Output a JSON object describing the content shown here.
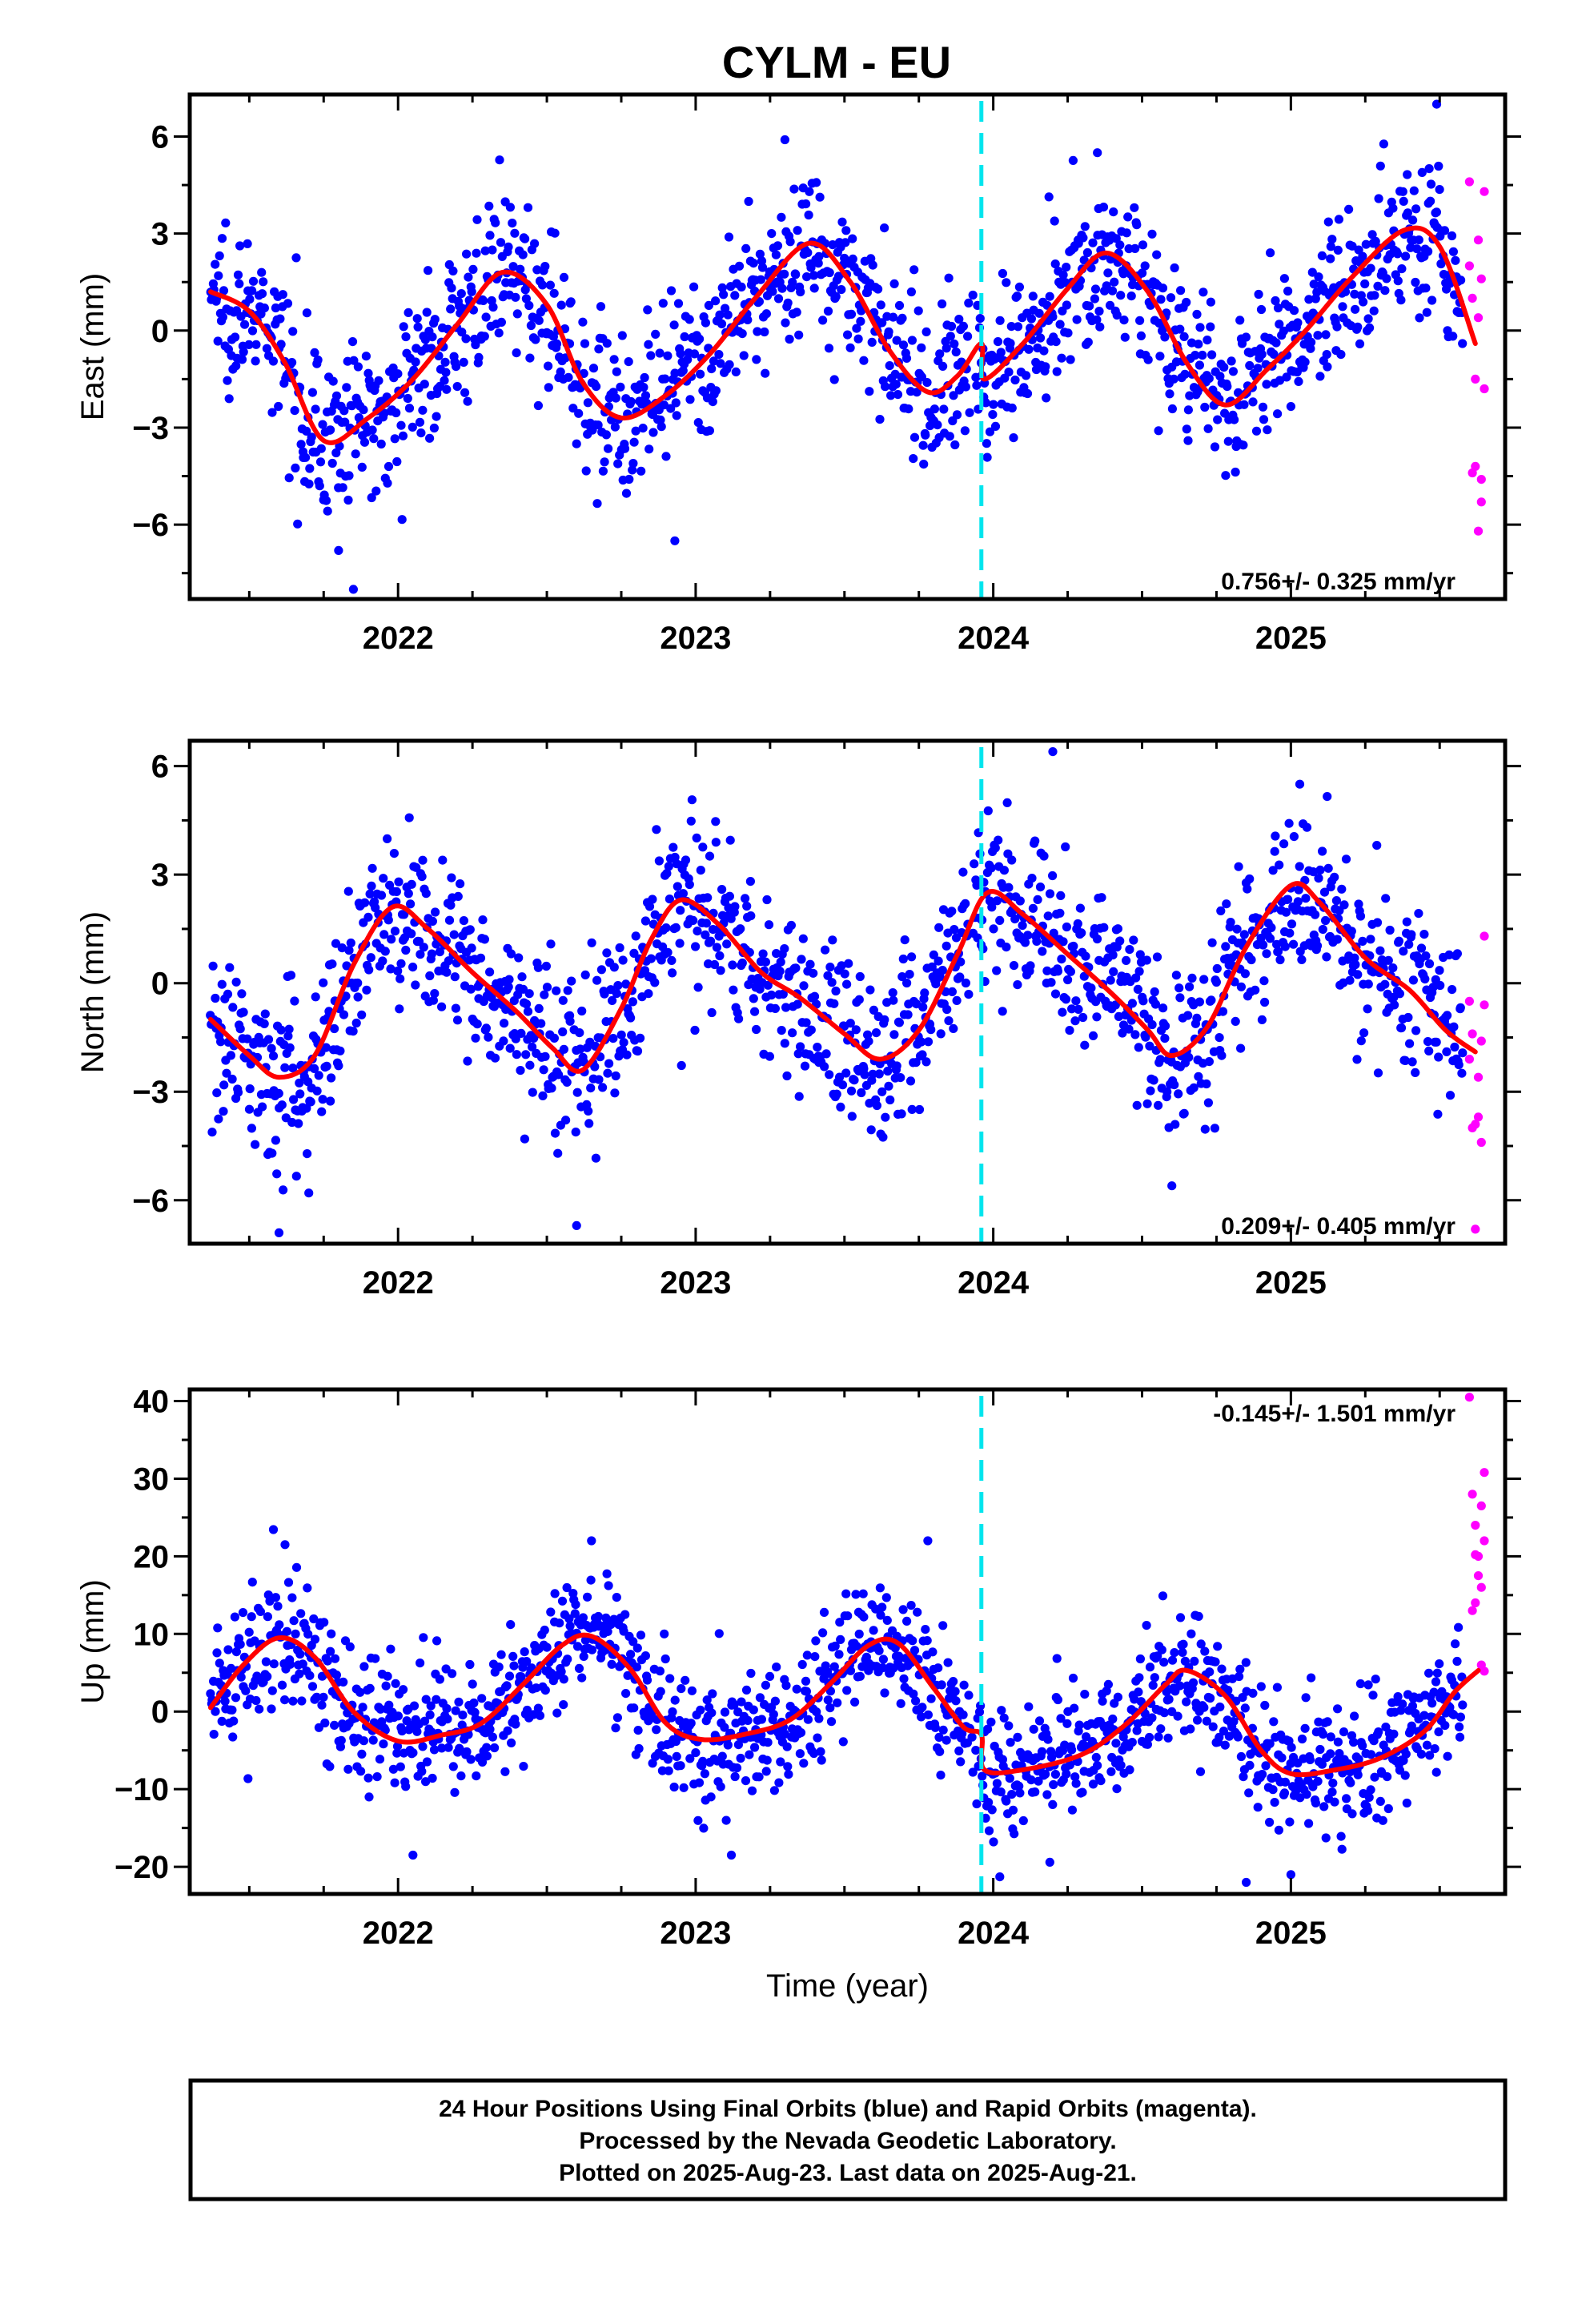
{
  "title": "CYLM - EU",
  "chart_data": [
    {
      "type": "scatter",
      "id": "east",
      "ylabel": "East (mm)",
      "xlabel": "",
      "xlim": [
        2021.3,
        2025.72
      ],
      "ylim": [
        -8.3,
        7.3
      ],
      "xticks": [
        2022,
        2023,
        2024,
        2025
      ],
      "yticks": [
        -6,
        -3,
        0,
        3,
        6
      ],
      "y_tick_labels": [
        "−6",
        "−3",
        "0",
        "3",
        "6"
      ],
      "rate": "0.756+/- 0.325 mm/yr",
      "rate_position": "bottom-right",
      "break_epoch": 2023.96,
      "seasonal": {
        "amplitude": 2.75,
        "phase_year": 0.38,
        "trend": 0.756,
        "t0": 2023.5,
        "offset_at_break": 0.0
      },
      "fit_points": [
        [
          2021.37,
          1.2
        ],
        [
          2021.5,
          0.6
        ],
        [
          2021.62,
          -1.0
        ],
        [
          2021.75,
          -3.4
        ],
        [
          2021.9,
          -2.7
        ],
        [
          2022.05,
          -1.5
        ],
        [
          2022.2,
          0.2
        ],
        [
          2022.35,
          1.8
        ],
        [
          2022.5,
          0.8
        ],
        [
          2022.62,
          -1.6
        ],
        [
          2022.75,
          -2.7
        ],
        [
          2022.9,
          -2.0
        ],
        [
          2023.05,
          -0.7
        ],
        [
          2023.2,
          1.0
        ],
        [
          2023.38,
          2.7
        ],
        [
          2023.52,
          1.5
        ],
        [
          2023.65,
          -0.6
        ],
        [
          2023.78,
          -1.9
        ],
        [
          2023.88,
          -1.4
        ],
        [
          2023.96,
          -0.4
        ],
        [
          2023.97,
          -1.5
        ],
        [
          2024.1,
          -0.4
        ],
        [
          2024.25,
          1.3
        ],
        [
          2024.38,
          2.4
        ],
        [
          2024.52,
          1.2
        ],
        [
          2024.65,
          -1.0
        ],
        [
          2024.78,
          -2.3
        ],
        [
          2024.92,
          -1.2
        ],
        [
          2025.05,
          0.0
        ],
        [
          2025.2,
          1.6
        ],
        [
          2025.38,
          3.1
        ],
        [
          2025.5,
          2.6
        ],
        [
          2025.62,
          -0.4
        ]
      ],
      "rapid_points": [
        [
          2025.6,
          4.6
        ],
        [
          2025.61,
          1.0
        ],
        [
          2025.62,
          -1.5
        ],
        [
          2025.62,
          -4.2
        ],
        [
          2025.63,
          -6.2
        ],
        [
          2025.63,
          2.8
        ],
        [
          2025.64,
          -4.6
        ],
        [
          2025.64,
          1.6
        ],
        [
          2025.65,
          4.3
        ],
        [
          2025.65,
          -1.8
        ],
        [
          2025.61,
          -4.4
        ],
        [
          2025.63,
          0.4
        ],
        [
          2025.64,
          -5.3
        ],
        [
          2025.6,
          2.0
        ]
      ],
      "noise_sigma": 1.2,
      "outliers": [
        [
          2021.85,
          -8.0
        ],
        [
          2021.8,
          -6.8
        ],
        [
          2023.3,
          5.9
        ],
        [
          2025.49,
          7.0
        ],
        [
          2024.35,
          5.5
        ],
        [
          2022.93,
          -6.5
        ]
      ],
      "colors": {
        "final": "#0000ff",
        "rapid": "#ff00ff",
        "fit": "#ff0000",
        "break": "#00e5ee"
      }
    },
    {
      "type": "scatter",
      "id": "north",
      "ylabel": "North (mm)",
      "xlabel": "",
      "xlim": [
        2021.3,
        2025.72
      ],
      "ylim": [
        -7.2,
        6.7
      ],
      "xticks": [
        2022,
        2023,
        2024,
        2025
      ],
      "yticks": [
        -6,
        -3,
        0,
        3,
        6
      ],
      "y_tick_labels": [
        "−6",
        "−3",
        "0",
        "3",
        "6"
      ],
      "rate": "0.209+/- 0.405 mm/yr",
      "rate_position": "bottom-right",
      "break_epoch": 2023.96,
      "fit_points": [
        [
          2021.37,
          -1.0
        ],
        [
          2021.5,
          -2.0
        ],
        [
          2021.6,
          -2.6
        ],
        [
          2021.72,
          -2.0
        ],
        [
          2021.85,
          0.5
        ],
        [
          2021.98,
          2.1
        ],
        [
          2022.1,
          1.5
        ],
        [
          2022.25,
          0.3
        ],
        [
          2022.4,
          -0.8
        ],
        [
          2022.52,
          -1.8
        ],
        [
          2022.62,
          -2.4
        ],
        [
          2022.75,
          -0.7
        ],
        [
          2022.85,
          1.2
        ],
        [
          2022.95,
          2.3
        ],
        [
          2023.08,
          1.6
        ],
        [
          2023.22,
          0.3
        ],
        [
          2023.35,
          -0.4
        ],
        [
          2023.5,
          -1.4
        ],
        [
          2023.62,
          -2.1
        ],
        [
          2023.75,
          -1.3
        ],
        [
          2023.88,
          0.8
        ],
        [
          2023.98,
          2.5
        ],
        [
          2024.1,
          1.9
        ],
        [
          2024.25,
          0.8
        ],
        [
          2024.4,
          -0.3
        ],
        [
          2024.52,
          -1.3
        ],
        [
          2024.6,
          -2.0
        ],
        [
          2024.72,
          -1.2
        ],
        [
          2024.85,
          1.0
        ],
        [
          2025.0,
          2.7
        ],
        [
          2025.1,
          2.2
        ],
        [
          2025.25,
          0.7
        ],
        [
          2025.4,
          -0.2
        ],
        [
          2025.52,
          -1.3
        ],
        [
          2025.62,
          -1.9
        ]
      ],
      "rapid_points": [
        [
          2025.6,
          -0.5
        ],
        [
          2025.61,
          -1.4
        ],
        [
          2025.62,
          -3.9
        ],
        [
          2025.63,
          -2.6
        ],
        [
          2025.64,
          -4.4
        ],
        [
          2025.65,
          -0.6
        ],
        [
          2025.65,
          1.3
        ],
        [
          2025.62,
          -6.8
        ],
        [
          2025.63,
          -3.7
        ],
        [
          2025.64,
          -1.6
        ],
        [
          2025.61,
          -4.0
        ],
        [
          2025.6,
          -2.1
        ]
      ],
      "noise_sigma": 1.15,
      "outliers": [
        [
          2021.6,
          -6.9
        ],
        [
          2022.6,
          -6.7
        ],
        [
          2024.2,
          6.4
        ],
        [
          2024.6,
          -5.6
        ],
        [
          2021.7,
          -5.8
        ],
        [
          2025.03,
          5.5
        ]
      ],
      "colors": {
        "final": "#0000ff",
        "rapid": "#ff00ff",
        "fit": "#ff0000",
        "break": "#00e5ee"
      }
    },
    {
      "type": "scatter",
      "id": "up",
      "ylabel": "Up (mm)",
      "xlabel": "Time (year)",
      "xlim": [
        2021.3,
        2025.72
      ],
      "ylim": [
        -23.5,
        41.5
      ],
      "xticks": [
        2022,
        2023,
        2024,
        2025
      ],
      "yticks": [
        -20,
        -10,
        0,
        10,
        20,
        30,
        40
      ],
      "y_tick_labels": [
        "−20",
        "−10",
        "0",
        "10",
        "20",
        "30",
        "40"
      ],
      "rate": "-0.145+/- 1.501 mm/yr",
      "rate_position": "top-right",
      "break_epoch": 2023.96,
      "fit_points": [
        [
          2021.37,
          0.5
        ],
        [
          2021.48,
          6.0
        ],
        [
          2021.6,
          9.5
        ],
        [
          2021.72,
          7.0
        ],
        [
          2021.85,
          0.0
        ],
        [
          2022.0,
          -3.8
        ],
        [
          2022.15,
          -3.0
        ],
        [
          2022.28,
          -1.5
        ],
        [
          2022.42,
          3.5
        ],
        [
          2022.55,
          8.5
        ],
        [
          2022.65,
          9.7
        ],
        [
          2022.78,
          5.5
        ],
        [
          2022.9,
          -1.5
        ],
        [
          2023.02,
          -3.6
        ],
        [
          2023.18,
          -2.8
        ],
        [
          2023.32,
          -1.0
        ],
        [
          2023.45,
          3.5
        ],
        [
          2023.58,
          8.5
        ],
        [
          2023.68,
          8.8
        ],
        [
          2023.8,
          3.0
        ],
        [
          2023.9,
          -2.0
        ],
        [
          2023.96,
          -3.0
        ],
        [
          2023.97,
          -7.5
        ],
        [
          2024.1,
          -7.5
        ],
        [
          2024.3,
          -5.5
        ],
        [
          2024.45,
          -1.5
        ],
        [
          2024.58,
          3.5
        ],
        [
          2024.65,
          5.3
        ],
        [
          2024.78,
          2.0
        ],
        [
          2024.9,
          -5.0
        ],
        [
          2025.0,
          -8.0
        ],
        [
          2025.15,
          -7.5
        ],
        [
          2025.3,
          -6.0
        ],
        [
          2025.45,
          -2.5
        ],
        [
          2025.55,
          2.5
        ],
        [
          2025.63,
          5.3
        ]
      ],
      "rapid_points": [
        [
          2025.6,
          40.5
        ],
        [
          2025.61,
          28.0
        ],
        [
          2025.62,
          24.0
        ],
        [
          2025.63,
          20.0
        ],
        [
          2025.64,
          16.0
        ],
        [
          2025.65,
          30.8
        ],
        [
          2025.65,
          22.0
        ],
        [
          2025.62,
          14.0
        ],
        [
          2025.63,
          17.5
        ],
        [
          2025.64,
          26.5
        ],
        [
          2025.61,
          13.0
        ],
        [
          2025.64,
          6.0
        ],
        [
          2025.65,
          5.2
        ],
        [
          2025.62,
          20.2
        ]
      ],
      "noise_sigma": 4.2,
      "outliers": [
        [
          2021.62,
          21.5
        ],
        [
          2022.65,
          22.0
        ],
        [
          2023.78,
          22.0
        ],
        [
          2024.85,
          -22.0
        ],
        [
          2025.0,
          -21.0
        ],
        [
          2022.05,
          -18.5
        ],
        [
          2023.12,
          -18.5
        ]
      ],
      "colors": {
        "final": "#0000ff",
        "rapid": "#ff00ff",
        "fit": "#ff0000",
        "break": "#00e5ee"
      }
    }
  ],
  "footer": {
    "line1": "24 Hour Positions Using Final Orbits (blue) and Rapid Orbits (magenta).",
    "line2": "Processed by the Nevada Geodetic Laboratory.",
    "line3": "Plotted on 2025-Aug-23. Last data on 2025-Aug-21."
  }
}
